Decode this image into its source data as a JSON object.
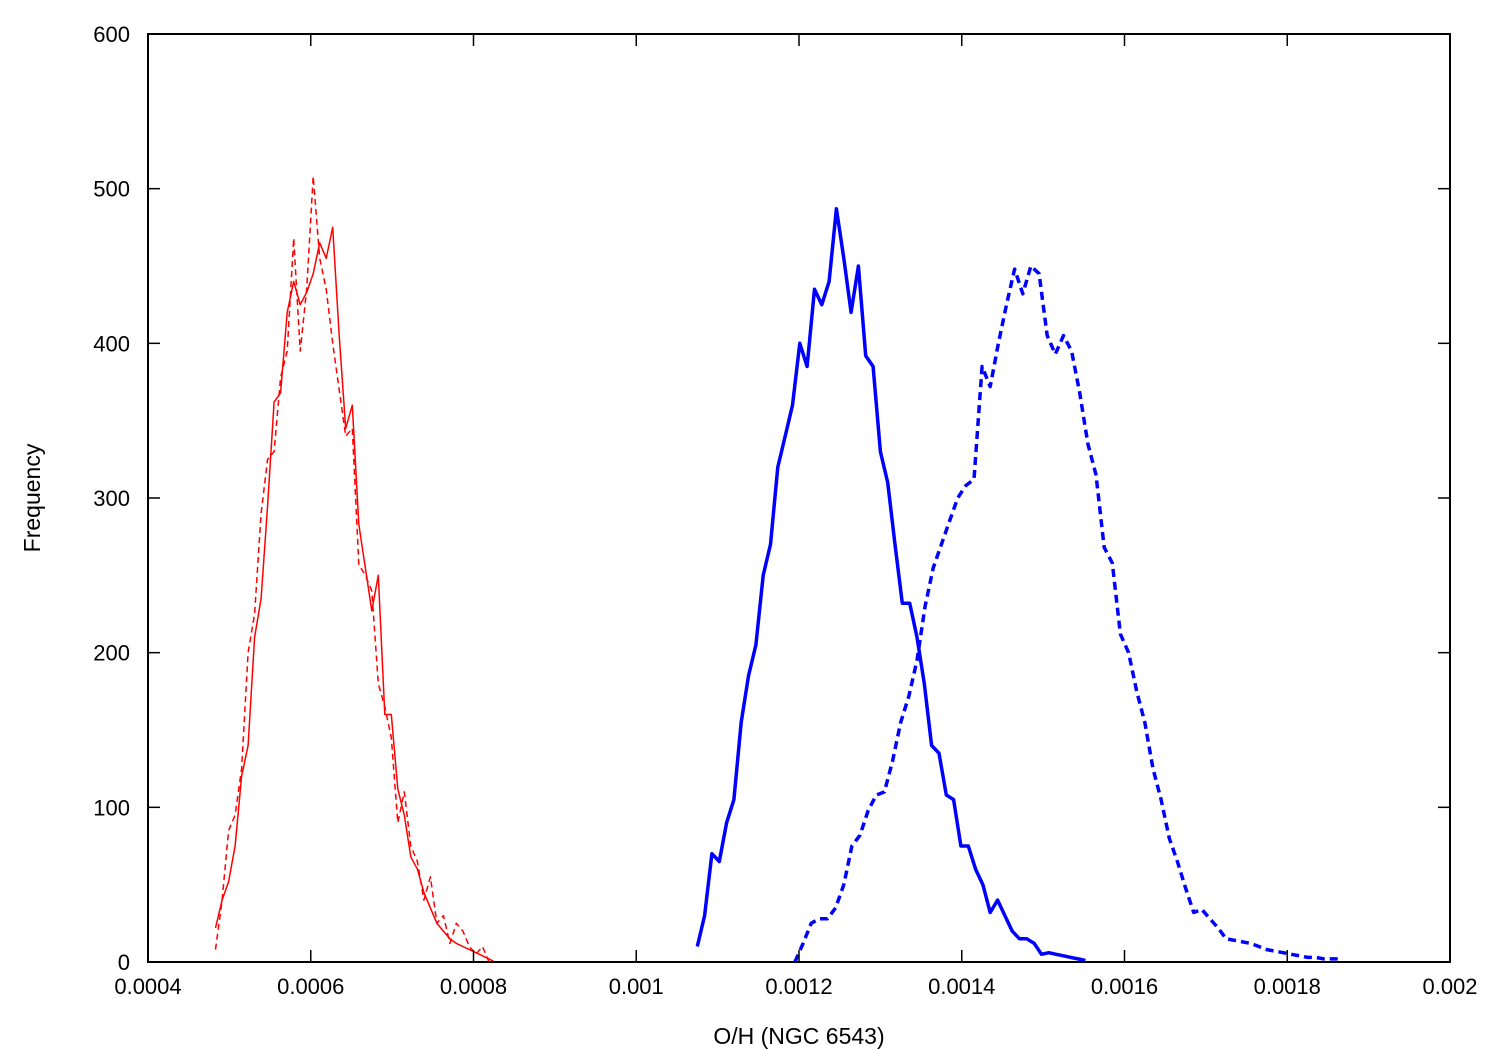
{
  "chart_data": {
    "type": "line",
    "title": "",
    "xlabel": "O/H (NGC 6543)",
    "ylabel": "Frequency",
    "xlim": [
      0.0004,
      0.002
    ],
    "ylim": [
      0,
      600
    ],
    "x_ticks": [
      "0.0004",
      "0.0006",
      "0.0008",
      "0.001",
      "0.0012",
      "0.0014",
      "0.0016",
      "0.0018",
      "0.002"
    ],
    "y_ticks": [
      "0",
      "100",
      "200",
      "300",
      "400",
      "500",
      "600"
    ],
    "grid": false,
    "legend": "none",
    "series": [
      {
        "color": "#ff0000",
        "style": "solid",
        "weight": "thin",
        "x": [
          0.000483,
          0.000491,
          0.000499,
          0.000507,
          0.000515,
          0.000523,
          0.000531,
          0.000539,
          0.000547,
          0.000555,
          0.000563,
          0.000571,
          0.000579,
          0.000587,
          0.000595,
          0.000603,
          0.000611,
          0.000619,
          0.000627,
          0.000635,
          0.000643,
          0.000651,
          0.000659,
          0.000667,
          0.000675,
          0.000683,
          0.000691,
          0.000699,
          0.000707,
          0.000715,
          0.000723,
          0.000731,
          0.000739,
          0.000747,
          0.000755,
          0.000763,
          0.000771,
          0.000779,
          0.000787,
          0.000795,
          0.000803,
          0.000811,
          0.000819,
          0.000826
        ],
        "y": [
          22,
          40,
          52,
          75,
          120,
          140,
          210,
          235,
          295,
          362,
          368,
          420,
          440,
          425,
          433,
          445,
          465,
          455,
          475,
          405,
          345,
          360,
          283,
          255,
          227,
          250,
          160,
          160,
          112,
          95,
          68,
          60,
          45,
          35,
          25,
          20,
          15,
          12,
          10,
          8,
          6,
          4,
          2,
          0
        ]
      },
      {
        "color": "#ff0000",
        "style": "dashed",
        "weight": "thin",
        "x": [
          0.000483,
          0.000491,
          0.000499,
          0.000507,
          0.000515,
          0.000523,
          0.000531,
          0.000539,
          0.000547,
          0.000555,
          0.000563,
          0.000571,
          0.000579,
          0.000587,
          0.000595,
          0.000603,
          0.000611,
          0.000619,
          0.000627,
          0.000635,
          0.000643,
          0.000651,
          0.000659,
          0.000667,
          0.000675,
          0.000683,
          0.000691,
          0.000699,
          0.000707,
          0.000715,
          0.000723,
          0.000731,
          0.000739,
          0.000747,
          0.000755,
          0.000763,
          0.000771,
          0.000779,
          0.000787,
          0.000795,
          0.000803,
          0.000811,
          0.000819
        ],
        "y": [
          8,
          40,
          85,
          95,
          125,
          200,
          225,
          290,
          325,
          330,
          378,
          395,
          468,
          395,
          435,
          508,
          455,
          435,
          400,
          370,
          340,
          345,
          257,
          250,
          240,
          180,
          165,
          145,
          90,
          110,
          75,
          65,
          40,
          55,
          25,
          30,
          12,
          25,
          20,
          10,
          5,
          10,
          0
        ]
      },
      {
        "color": "#0000ff",
        "style": "solid",
        "weight": "thick",
        "x": [
          0.001075,
          0.001084,
          0.001093,
          0.001102,
          0.001111,
          0.00112,
          0.001129,
          0.001138,
          0.001147,
          0.001156,
          0.001165,
          0.001174,
          0.001183,
          0.001192,
          0.001201,
          0.00121,
          0.001219,
          0.001228,
          0.001237,
          0.001246,
          0.001255,
          0.001264,
          0.001273,
          0.001282,
          0.001291,
          0.0013,
          0.001309,
          0.001318,
          0.001327,
          0.001336,
          0.001345,
          0.001354,
          0.001363,
          0.001372,
          0.001381,
          0.00139,
          0.001399,
          0.001408,
          0.001417,
          0.001426,
          0.001435,
          0.001444,
          0.001453,
          0.001462,
          0.001471,
          0.00148,
          0.001489,
          0.001498,
          0.001507,
          0.001516,
          0.001525,
          0.001534,
          0.001543,
          0.001552
        ],
        "y": [
          10,
          30,
          70,
          65,
          90,
          105,
          155,
          185,
          205,
          250,
          270,
          320,
          340,
          360,
          400,
          385,
          435,
          425,
          440,
          487,
          455,
          420,
          450,
          392,
          385,
          330,
          310,
          270,
          232,
          232,
          210,
          180,
          140,
          135,
          108,
          105,
          75,
          75,
          60,
          50,
          32,
          40,
          30,
          20,
          15,
          15,
          12,
          5,
          6,
          5,
          4,
          3,
          2,
          1
        ]
      },
      {
        "color": "#0000ff",
        "style": "dashed",
        "weight": "thick",
        "x": [
          0.001195,
          0.001205,
          0.001215,
          0.001225,
          0.001235,
          0.001245,
          0.001255,
          0.001265,
          0.001275,
          0.001285,
          0.001295,
          0.001305,
          0.001315,
          0.001325,
          0.001335,
          0.001345,
          0.001355,
          0.001365,
          0.001375,
          0.001385,
          0.001395,
          0.001405,
          0.001415,
          0.001425,
          0.001435,
          0.001445,
          0.001455,
          0.001465,
          0.001475,
          0.001485,
          0.001495,
          0.001505,
          0.001515,
          0.001525,
          0.001535,
          0.001545,
          0.001555,
          0.001565,
          0.001575,
          0.001585,
          0.001595,
          0.001605,
          0.001615,
          0.001625,
          0.001635,
          0.001645,
          0.001655,
          0.001665,
          0.001675,
          0.001685,
          0.001695,
          0.001705,
          0.001715,
          0.001725,
          0.001735,
          0.001745,
          0.001755,
          0.001765,
          0.001775,
          0.001785,
          0.001795,
          0.001805,
          0.001815,
          0.001825,
          0.001835,
          0.001845,
          0.001855,
          0.001865
        ],
        "y": [
          0,
          12,
          25,
          28,
          28,
          35,
          50,
          75,
          82,
          98,
          108,
          110,
          130,
          155,
          172,
          195,
          230,
          255,
          270,
          285,
          300,
          308,
          312,
          385,
          372,
          400,
          425,
          448,
          432,
          450,
          445,
          405,
          393,
          405,
          395,
          368,
          335,
          315,
          268,
          258,
          212,
          200,
          175,
          155,
          125,
          105,
          80,
          65,
          48,
          32,
          34,
          28,
          22,
          15,
          14,
          13,
          12,
          10,
          8,
          7,
          6,
          5,
          4,
          3,
          3,
          2,
          2,
          2
        ]
      }
    ]
  }
}
